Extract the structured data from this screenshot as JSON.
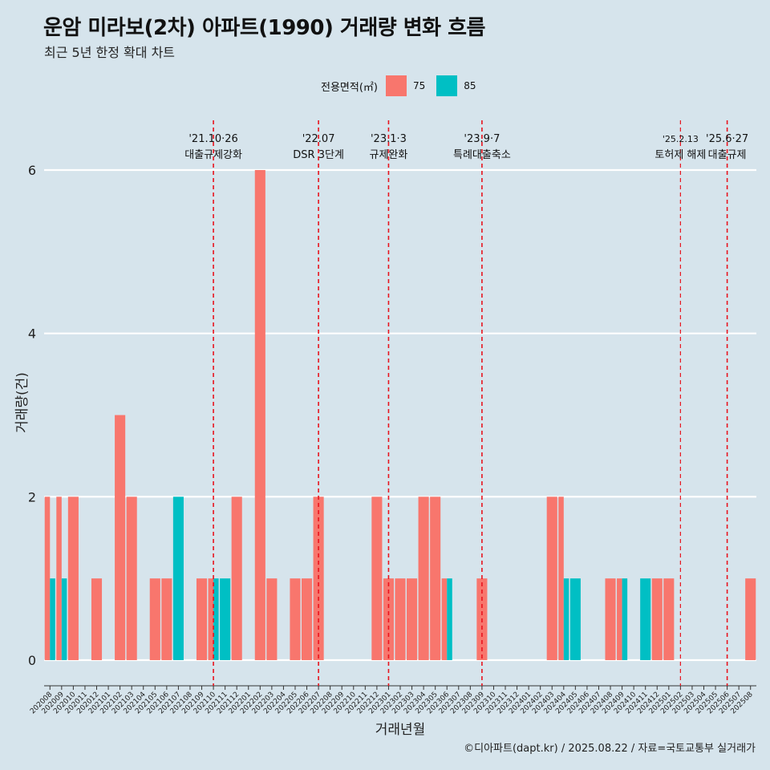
{
  "title": "운암 미라보(2차) 아파트(1990) 거래량 변화 흐름",
  "subtitle": "최근 5년 한정 확대 차트",
  "legend": {
    "title": "전용면적(㎡)",
    "items": [
      {
        "label": "75",
        "color": "#f8766d"
      },
      {
        "label": "85",
        "color": "#00bfc4"
      }
    ]
  },
  "caption": "©디아파트(dapt.kr) / 2025.08.22 / 자료=국토교통부 실거래가",
  "chart_data": {
    "type": "bar",
    "title": "운암 미라보(2차) 아파트(1990) 거래량 변화 흐름",
    "subtitle": "최근 5년 한정 확대 차트",
    "xlabel": "거래년월",
    "ylabel": "거래량(건)",
    "ylim": [
      0,
      6
    ],
    "yticks": [
      0,
      2,
      4,
      6
    ],
    "grid": "horizontal",
    "legend_position": "top",
    "categories": [
      "202008",
      "202009",
      "202010",
      "202011",
      "202012",
      "202101",
      "202102",
      "202103",
      "202104",
      "202105",
      "202106",
      "202107",
      "202108",
      "202109",
      "202110",
      "202111",
      "202112",
      "202201",
      "202202",
      "202203",
      "202204",
      "202205",
      "202206",
      "202207",
      "202208",
      "202209",
      "202210",
      "202211",
      "202212",
      "202301",
      "202302",
      "202303",
      "202304",
      "202305",
      "202306",
      "202307",
      "202308",
      "202309",
      "202310",
      "202311",
      "202312",
      "202401",
      "202402",
      "202403",
      "202404",
      "202405",
      "202406",
      "202407",
      "202408",
      "202409",
      "202410",
      "202411",
      "202412",
      "202501",
      "202502",
      "202503",
      "202504",
      "202505",
      "202506",
      "202507",
      "202508"
    ],
    "series": [
      {
        "name": "75",
        "color": "#f8766d",
        "values": [
          2,
          2,
          2,
          0,
          1,
          0,
          3,
          2,
          0,
          1,
          1,
          0,
          0,
          1,
          1,
          0,
          2,
          0,
          6,
          1,
          0,
          1,
          1,
          2,
          0,
          0,
          0,
          0,
          2,
          1,
          1,
          1,
          2,
          2,
          1,
          0,
          0,
          1,
          0,
          0,
          0,
          0,
          0,
          2,
          2,
          0,
          0,
          0,
          1,
          1,
          0,
          0,
          1,
          1,
          0,
          0,
          0,
          0,
          0,
          0,
          1
        ]
      },
      {
        "name": "85",
        "color": "#00bfc4",
        "values": [
          1,
          1,
          0,
          0,
          0,
          0,
          0,
          0,
          0,
          0,
          0,
          2,
          0,
          0,
          1,
          1,
          0,
          0,
          0,
          0,
          0,
          0,
          0,
          0,
          0,
          0,
          0,
          0,
          0,
          0,
          0,
          0,
          0,
          0,
          1,
          0,
          0,
          0,
          0,
          0,
          0,
          0,
          0,
          0,
          1,
          1,
          0,
          0,
          0,
          1,
          0,
          1,
          0,
          0,
          0,
          0,
          0,
          0,
          0,
          0,
          0
        ]
      }
    ],
    "events": [
      {
        "date": "'21.10·26",
        "label": "대출규제강화"
      },
      {
        "date": "'22.07",
        "label": "DSR 3단계"
      },
      {
        "date": "'23.1·3",
        "label": "규제완화"
      },
      {
        "date": "'23.9·7",
        "label": "특례대출축소"
      },
      {
        "date": "'25.2.13",
        "label": "토허제 해제"
      },
      {
        "date": "'25.6·27",
        "label": "대출규제"
      }
    ]
  }
}
